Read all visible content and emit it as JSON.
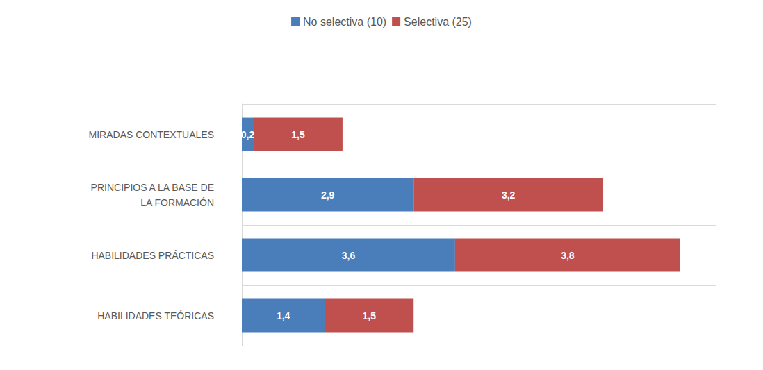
{
  "chart_data": {
    "type": "bar",
    "orientation": "horizontal",
    "stacked": true,
    "data_labels": true,
    "tick_labels": "y",
    "grid": true,
    "legend": "top",
    "categories": [
      "MIRADAS CONTEXTUALES",
      "PRINCIPIOS A LA BASE DE\nLA FORMACIÓN",
      "HABILIDADES PRÁCTICAS",
      "HABILIDADES TEÓRICAS"
    ],
    "xlim": [
      0,
      8
    ],
    "series": [
      {
        "name": "No selectiva (10)",
        "color": "#4a7ebb",
        "values": [
          0.2,
          2.9,
          3.6,
          1.4
        ],
        "value_labels": [
          "0,2",
          "2,9",
          "3,6",
          "1,4"
        ]
      },
      {
        "name": "Selectiva (25)",
        "color": "#c0504d",
        "values": [
          1.5,
          3.2,
          3.8,
          1.5
        ],
        "value_labels": [
          "1,5",
          "3,2",
          "3,8",
          "1,5"
        ]
      }
    ]
  }
}
